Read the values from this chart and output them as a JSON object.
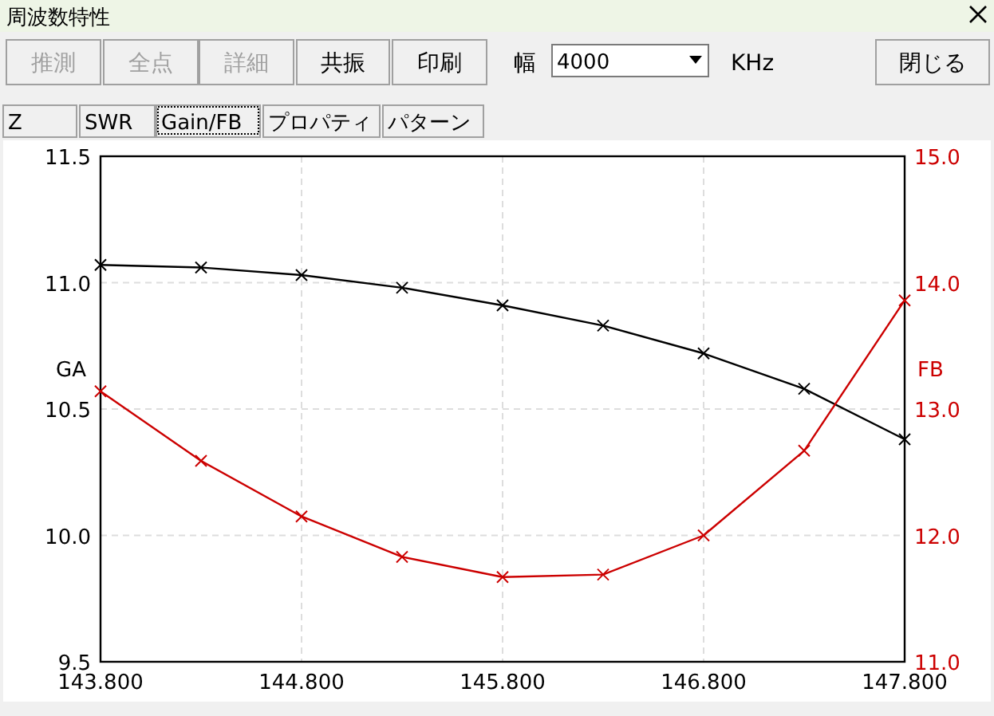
{
  "chart_data": {
    "type": "line",
    "title": "周波数特性",
    "annotations": [
      "推測",
      "全点",
      "詳細",
      "共振",
      "印刷",
      "幅",
      "4000",
      "KHz",
      "閉じる",
      "Z",
      "SWR",
      "Gain/FB",
      "プロパティ",
      "パターン"
    ],
    "x": [
      143.8,
      144.3,
      144.8,
      145.3,
      145.8,
      146.3,
      146.8,
      147.3,
      147.8
    ],
    "series": [
      {
        "color": "#000000",
        "values": [
          11.07,
          11.06,
          11.03,
          10.98,
          10.91,
          10.83,
          10.72,
          10.58,
          10.38
        ]
      },
      {
        "color": "#cc0000",
        "axis": "y2",
        "values": [
          13.14,
          12.59,
          12.15,
          11.83,
          11.67,
          11.69,
          12.0,
          12.67,
          13.86
        ]
      }
    ],
    "ylabel": "GA",
    "y2label": "FB",
    "xlim": [
      143.8,
      147.8
    ],
    "xticks": [
      {
        "value": 143.8,
        "label": "143.800"
      },
      {
        "value": 144.8,
        "label": "144.800"
      },
      {
        "value": 145.8,
        "label": "145.800"
      },
      {
        "value": 146.8,
        "label": "146.800"
      },
      {
        "value": 147.8,
        "label": "147.800"
      }
    ],
    "ylim": [
      9.5,
      11.5
    ],
    "yticks": [
      9.5,
      {
        "value": 10,
        "label": "10.0"
      },
      10.5,
      {
        "value": 11,
        "label": "11.0"
      },
      11.5
    ],
    "y2lim": [
      11,
      15
    ],
    "y2ticks": [
      {
        "value": 11,
        "label": "11.0"
      },
      {
        "value": 12,
        "label": "12.0"
      },
      {
        "value": 13,
        "label": "13.0"
      },
      {
        "value": 14,
        "label": "14.0"
      },
      {
        "value": 15,
        "label": "15.0"
      }
    ],
    "grid": true,
    "marker": "cross",
    "line_style": "solid"
  }
}
